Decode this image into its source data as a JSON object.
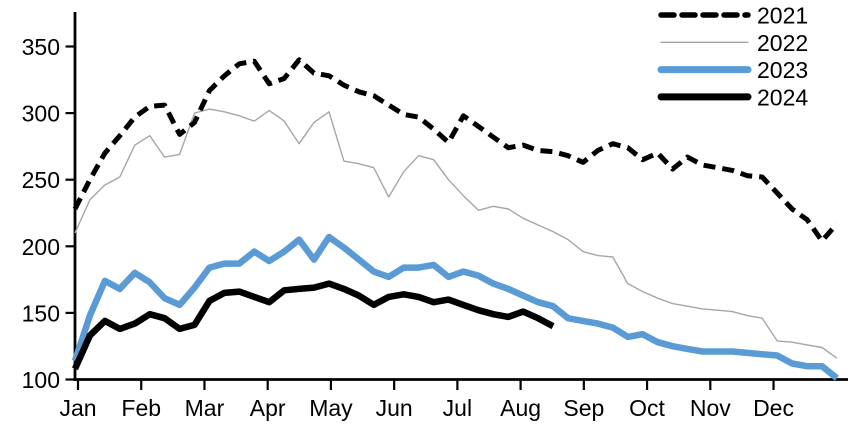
{
  "chart_data": {
    "type": "line",
    "title": "",
    "frequency": "weekly",
    "x_axis": {
      "label": "",
      "tick_labels": [
        "Jan",
        "Feb",
        "Mar",
        "Apr",
        "May",
        "Jun",
        "Jul",
        "Aug",
        "Sep",
        "Oct",
        "Nov",
        "Dec"
      ]
    },
    "y_axis": {
      "label": "",
      "min": 100,
      "max": 350,
      "ticks": [
        100,
        150,
        200,
        250,
        300,
        350
      ]
    },
    "legend": {
      "position": "top-right",
      "entries": [
        "2021",
        "2022",
        "2023",
        "2024"
      ]
    },
    "series": [
      {
        "name": "2021",
        "color": "#000000",
        "line_style": "dashed",
        "line_width": 5,
        "values": [
          228,
          250,
          270,
          283,
          297,
          305,
          306,
          284,
          293,
          317,
          328,
          337,
          339,
          322,
          326,
          340,
          330,
          328,
          321,
          316,
          313,
          306,
          299,
          297,
          288,
          278,
          298,
          290,
          282,
          274,
          276,
          272,
          271,
          268,
          263,
          272,
          277,
          274,
          265,
          270,
          258,
          267,
          261,
          259,
          257,
          253,
          252,
          240,
          228,
          220,
          204,
          217
        ]
      },
      {
        "name": "2022",
        "color": "#a6a6a6",
        "line_style": "solid",
        "line_width": 1.4,
        "values": [
          210,
          235,
          246,
          252,
          276,
          283,
          267,
          269,
          300,
          303,
          301,
          298,
          294,
          302,
          294,
          277,
          293,
          301,
          264,
          262,
          259,
          237,
          256,
          268,
          265,
          250,
          238,
          227,
          230,
          228,
          221,
          216,
          211,
          205,
          196,
          193,
          192,
          172,
          166,
          161,
          157,
          155,
          153,
          152,
          151,
          148,
          146,
          129,
          128,
          126,
          124,
          116
        ]
      },
      {
        "name": "2023",
        "color": "#5b9bd5",
        "line_style": "solid",
        "line_width": 6.5,
        "values": [
          114,
          148,
          174,
          168,
          180,
          173,
          161,
          156,
          169,
          184,
          187,
          187,
          196,
          189,
          196,
          205,
          190,
          207,
          199,
          190,
          181,
          177,
          184,
          184,
          186,
          177,
          181,
          178,
          172,
          168,
          163,
          158,
          155,
          146,
          144,
          142,
          139,
          132,
          134,
          128,
          125,
          123,
          121,
          121,
          121,
          120,
          119,
          118,
          112,
          110,
          110,
          101
        ]
      },
      {
        "name": "2024",
        "color": "#000000",
        "line_style": "solid",
        "line_width": 6.5,
        "values": [
          108,
          133,
          144,
          138,
          142,
          149,
          146,
          138,
          141,
          159,
          165,
          166,
          162,
          158,
          167,
          168,
          169,
          172,
          168,
          163,
          156,
          162,
          164,
          162,
          158,
          160,
          156,
          152,
          149,
          147,
          151,
          146,
          140
        ]
      }
    ]
  }
}
